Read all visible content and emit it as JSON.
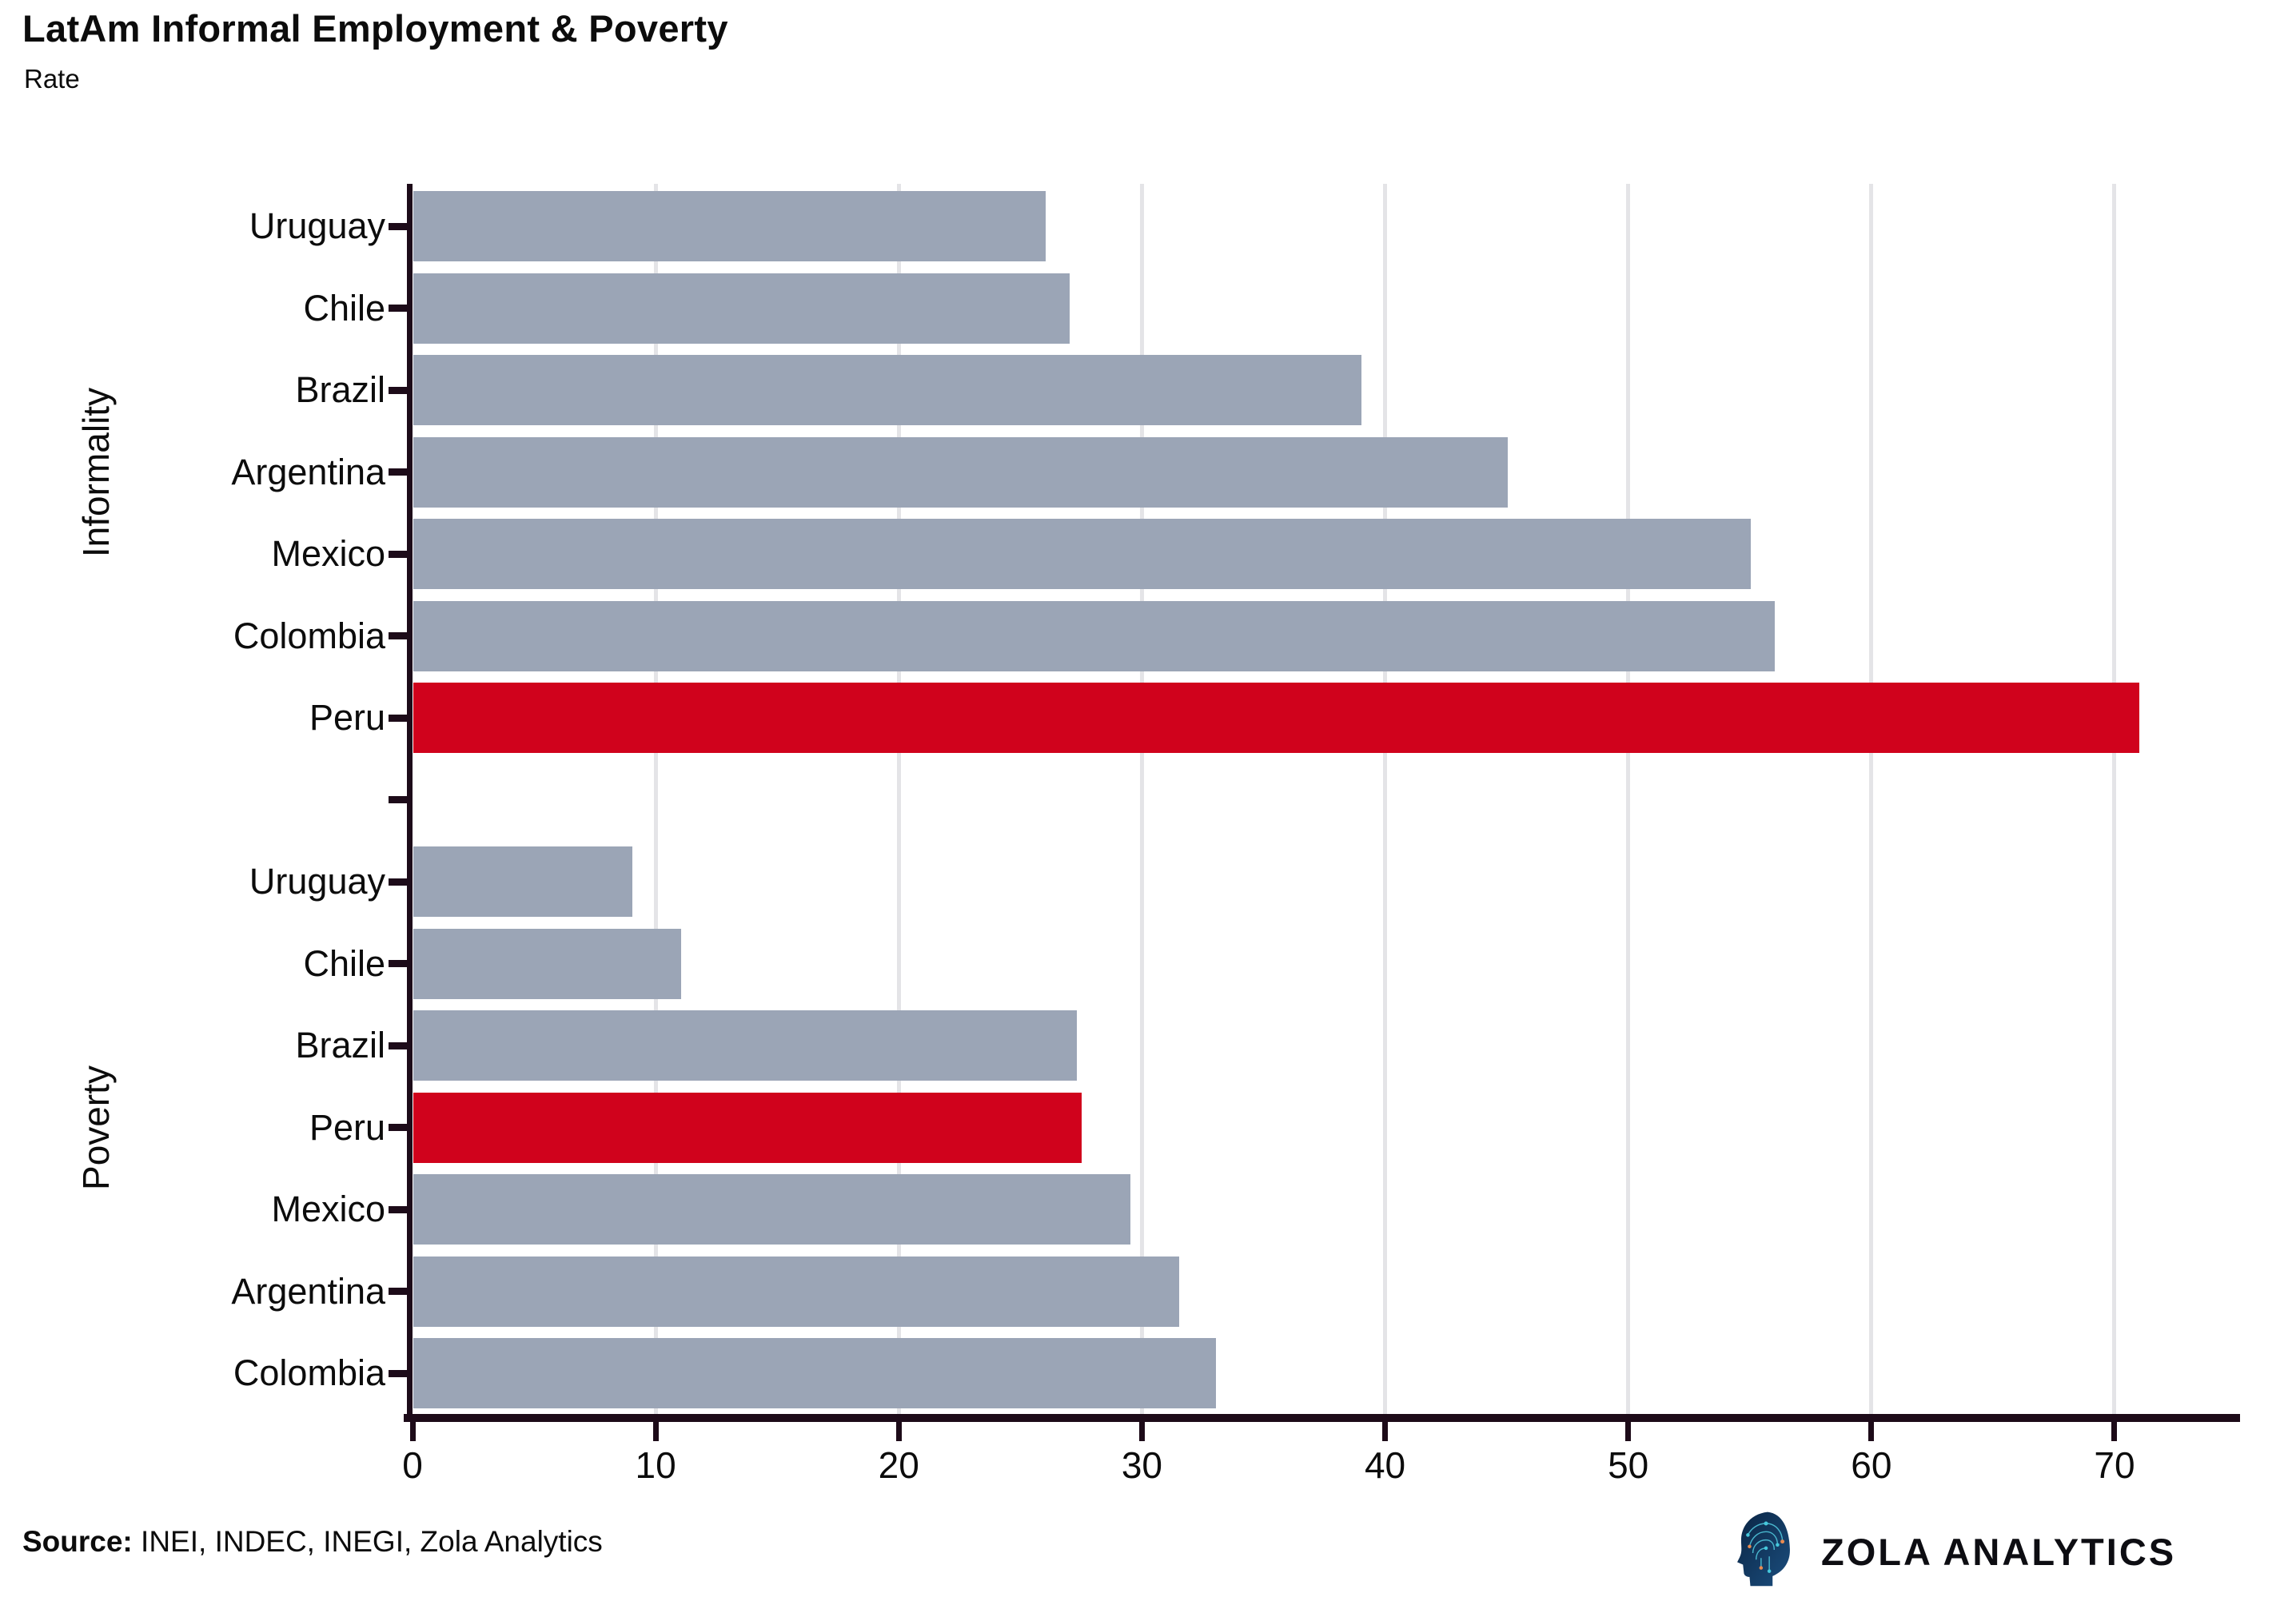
{
  "header": {
    "title": "LatAm Informal Employment & Poverty",
    "subtitle": "Rate"
  },
  "chart_data": {
    "type": "bar",
    "orientation": "horizontal",
    "title": "LatAm Informal Employment & Poverty",
    "subtitle": "Rate",
    "xlim": [
      0,
      75
    ],
    "x_ticks": [
      0,
      10,
      20,
      30,
      40,
      50,
      60,
      70
    ],
    "grid": "vertical",
    "legend": "none",
    "groups": [
      {
        "label": "Informality",
        "bars": [
          {
            "category": "Uruguay",
            "value": 26,
            "highlight": false
          },
          {
            "category": "Chile",
            "value": 27,
            "highlight": false
          },
          {
            "category": "Brazil",
            "value": 39,
            "highlight": false
          },
          {
            "category": "Argentina",
            "value": 45,
            "highlight": false
          },
          {
            "category": "Mexico",
            "value": 55,
            "highlight": false
          },
          {
            "category": "Colombia",
            "value": 56,
            "highlight": false
          },
          {
            "category": "Peru",
            "value": 71,
            "highlight": true
          }
        ]
      },
      {
        "label": "Poverty",
        "bars": [
          {
            "category": "Uruguay",
            "value": 9,
            "highlight": false
          },
          {
            "category": "Chile",
            "value": 11,
            "highlight": false
          },
          {
            "category": "Brazil",
            "value": 27.3,
            "highlight": false
          },
          {
            "category": "Peru",
            "value": 27.5,
            "highlight": true
          },
          {
            "category": "Mexico",
            "value": 29.5,
            "highlight": false
          },
          {
            "category": "Argentina",
            "value": 31.5,
            "highlight": false
          },
          {
            "category": "Colombia",
            "value": 33,
            "highlight": false
          }
        ]
      }
    ]
  },
  "colors": {
    "bar_default": "#9BA5B6",
    "bar_highlight": "#D0021C",
    "axis": "#1D0B19",
    "gridline": "#E4E4E7",
    "text": "#111111",
    "logo_navy": "#0E2D52",
    "logo_teal": "#45C8DC",
    "logo_orange": "#E98A50"
  },
  "footer": {
    "source_label": "Source:",
    "source_text": " INEI, INDEC, INEGI, Zola Analytics",
    "brand": "ZOLA ANALYTICS"
  }
}
